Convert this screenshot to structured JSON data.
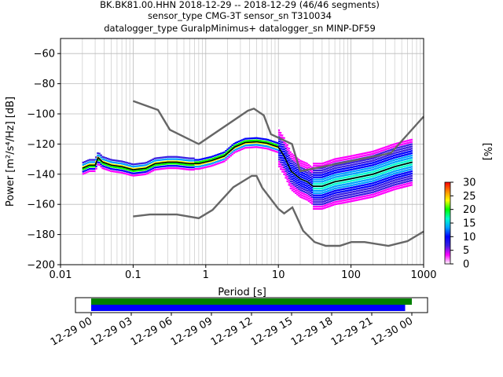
{
  "title": {
    "line1": "BK.BK81.00.HHN   2018-12-29 -- 2018-12-29  (46/46 segments)",
    "line2": "sensor_type CMG-3T sensor_sn T310034",
    "line3": "datalogger_type GuralpMinimus+ datalogger_sn MINP-DF59"
  },
  "chart_data": [
    {
      "type": "heatmap",
      "xlabel": "Period [s]",
      "ylabel": "Power [m²/s⁴/Hz] [dB]",
      "xscale": "log",
      "xlim": [
        0.01,
        1000
      ],
      "ylim": [
        -200,
        -50
      ],
      "x_ticks": [
        "0.01",
        "0.1",
        "1",
        "10",
        "100",
        "1000"
      ],
      "y_ticks": [
        "−200",
        "−180",
        "−160",
        "−140",
        "−120",
        "−100",
        "−80",
        "−60"
      ],
      "grid": true,
      "colorbar": {
        "label": "[%]",
        "ticks": [
          "0",
          "5",
          "10",
          "15",
          "20",
          "25",
          "30"
        ],
        "range": [
          0,
          30
        ],
        "colors": [
          "#ffffff",
          "#ff00ff",
          "#3a1ee0",
          "#0000ff",
          "#00a0ff",
          "#00ffcc",
          "#00ff00",
          "#ffff00",
          "#ff8800",
          "#ff0000"
        ]
      },
      "noise_models": {
        "high": {
          "name": "NHNM",
          "color": "#666666",
          "points": [
            [
              0.1,
              -91.5
            ],
            [
              0.22,
              -97.4
            ],
            [
              0.32,
              -110.5
            ],
            [
              0.8,
              -120
            ],
            [
              3.8,
              -97.9
            ],
            [
              4.6,
              -96.5
            ],
            [
              6.3,
              -101
            ],
            [
              7.9,
              -113.5
            ],
            [
              15.4,
              -120
            ],
            [
              20,
              -138
            ],
            [
              354,
              -126
            ],
            [
              10000,
              -48
            ]
          ]
        },
        "low": {
          "name": "NLNM",
          "color": "#666666",
          "points": [
            [
              0.1,
              -168
            ],
            [
              0.17,
              -166.7
            ],
            [
              0.4,
              -166.7
            ],
            [
              0.8,
              -169.2
            ],
            [
              1.24,
              -163.7
            ],
            [
              2.4,
              -148.6
            ],
            [
              4.3,
              -141.1
            ],
            [
              5,
              -141.1
            ],
            [
              6,
              -149
            ],
            [
              10,
              -163
            ],
            [
              12,
              -166
            ],
            [
              15.6,
              -162
            ],
            [
              21.9,
              -177.5
            ],
            [
              31.6,
              -185
            ],
            [
              45,
              -187.5
            ],
            [
              70,
              -187.5
            ],
            [
              101,
              -185
            ],
            [
              154,
              -185
            ],
            [
              328,
              -187.5
            ],
            [
              600,
              -184.4
            ],
            [
              1000,
              -178
            ]
          ]
        }
      },
      "mean_psd": {
        "color": "#000000",
        "points": [
          [
            0.02,
            -136
          ],
          [
            0.025,
            -134
          ],
          [
            0.03,
            -134
          ],
          [
            0.033,
            -129
          ],
          [
            0.038,
            -132
          ],
          [
            0.05,
            -134
          ],
          [
            0.07,
            -135
          ],
          [
            0.1,
            -137
          ],
          [
            0.15,
            -136
          ],
          [
            0.2,
            -133
          ],
          [
            0.3,
            -132
          ],
          [
            0.4,
            -132
          ],
          [
            0.6,
            -133
          ],
          [
            0.8,
            -133
          ],
          [
            1.2,
            -131
          ],
          [
            1.8,
            -128
          ],
          [
            2.5,
            -122
          ],
          [
            3.5,
            -119
          ],
          [
            5,
            -118.5
          ],
          [
            7,
            -119.5
          ],
          [
            10,
            -122
          ],
          [
            12,
            -128
          ],
          [
            15,
            -138
          ],
          [
            20,
            -143
          ],
          [
            25,
            -145
          ],
          [
            30,
            -148
          ],
          [
            40,
            -148
          ],
          [
            60,
            -145
          ],
          [
            100,
            -143
          ],
          [
            200,
            -140
          ],
          [
            400,
            -135
          ],
          [
            700,
            -132
          ]
        ]
      },
      "density_bands": [
        {
          "x": [
            0.02,
            0.7
          ],
          "y_top": -130,
          "y_bot": -138,
          "percent": 25
        },
        {
          "x": [
            0.7,
            10
          ],
          "y_top": -117,
          "y_bot": -124,
          "percent": 28
        },
        {
          "x": [
            10,
            30
          ],
          "y_top": -125,
          "y_bot": -152,
          "percent": 12
        },
        {
          "x": [
            30,
            700
          ],
          "y_top": -128,
          "y_bot": -158,
          "percent": 18
        }
      ]
    },
    {
      "type": "timeline",
      "xlim": [
        "2018-12-29 00:00",
        "2018-12-30 00:00"
      ],
      "x_ticks": [
        "12-29 00",
        "12-29 03",
        "12-29 06",
        "12-29 09",
        "12-29 12",
        "12-29 15",
        "12-29 18",
        "12-29 21",
        "12-30 00"
      ],
      "series": [
        {
          "color": "#008000",
          "range": [
            "2018-12-29 00:00",
            "2018-12-30 00:00"
          ]
        },
        {
          "color": "#0000ff",
          "range": [
            "2018-12-29 00:00",
            "2018-12-29 23:30"
          ]
        }
      ]
    }
  ]
}
